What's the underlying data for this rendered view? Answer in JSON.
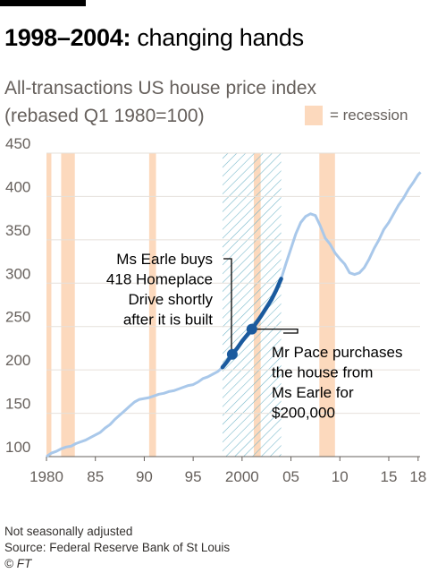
{
  "header": {
    "title_bold": "1998–2004:",
    "title_rest": "changing hands",
    "subtitle_line1": "All-transactions US house price index",
    "subtitle_line2": "(rebased Q1 1980=100)",
    "legend_label": "= recession"
  },
  "footer": {
    "note": "Not seasonally adjusted",
    "source": "Source: Federal Reserve Bank of St Louis",
    "credit": "© FT"
  },
  "colors": {
    "line": "#a9c8ea",
    "highlight": "#1a5a9e",
    "recession": "#fcd9bd",
    "hatch": "#6fb3c7",
    "grid": "#e6e1db",
    "tick_text": "#66605c"
  },
  "chart_data": {
    "type": "line",
    "x_range": [
      1980,
      2018.5
    ],
    "ylim": [
      100,
      450
    ],
    "yticks": [
      100,
      150,
      200,
      250,
      300,
      350,
      400,
      450
    ],
    "xticks": [
      {
        "x": 1980,
        "label": "1980"
      },
      {
        "x": 1985,
        "label": "85"
      },
      {
        "x": 1990,
        "label": "90"
      },
      {
        "x": 1995,
        "label": "95"
      },
      {
        "x": 2000,
        "label": "2000"
      },
      {
        "x": 2005,
        "label": "05"
      },
      {
        "x": 2010,
        "label": "10"
      },
      {
        "x": 2015,
        "label": "15"
      },
      {
        "x": 2018,
        "label": "18"
      }
    ],
    "grid": true,
    "legend": "top-right",
    "recessions": [
      [
        1980.0,
        1980.5
      ],
      [
        1981.5,
        1982.9
      ],
      [
        1990.5,
        1991.2
      ],
      [
        2001.2,
        2001.9
      ],
      [
        2007.9,
        2009.5
      ]
    ],
    "highlight_period": [
      1998.0,
      2004.0
    ],
    "series": [
      {
        "x": [
          1980.0,
          1980.5,
          1981.0,
          1981.5,
          1982.0,
          1982.5,
          1983.0,
          1983.5,
          1984.0,
          1984.5,
          1985.0,
          1985.5,
          1986.0,
          1986.5,
          1987.0,
          1987.5,
          1988.0,
          1988.5,
          1989.0,
          1989.5,
          1990.0,
          1990.5,
          1991.0,
          1991.5,
          1992.0,
          1992.5,
          1993.0,
          1993.5,
          1994.0,
          1994.5,
          1995.0,
          1995.5,
          1996.0,
          1996.5,
          1997.0,
          1997.5,
          1998.0,
          1998.5,
          1999.0,
          1999.5,
          2000.0,
          2000.5,
          2001.0,
          2001.5,
          2002.0,
          2002.5,
          2003.0,
          2003.5,
          2004.0,
          2004.5,
          2005.0,
          2005.5,
          2006.0,
          2006.5,
          2007.0,
          2007.5,
          2008.0,
          2008.5,
          2009.0,
          2009.5,
          2010.0,
          2010.5,
          2011.0,
          2011.5,
          2012.0,
          2012.5,
          2013.0,
          2013.5,
          2014.0,
          2014.5,
          2015.0,
          2015.5,
          2016.0,
          2016.5,
          2017.0,
          2017.5,
          2018.0,
          2018.25
        ],
        "values": [
          100,
          104,
          106,
          109,
          111,
          112,
          115,
          117,
          119,
          122,
          125,
          128,
          133,
          137,
          143,
          148,
          153,
          158,
          163,
          166,
          167,
          168,
          170,
          172,
          173,
          175,
          176,
          178,
          180,
          182,
          183,
          186,
          190,
          192,
          195,
          198,
          203,
          210,
          218,
          225,
          233,
          240,
          247,
          255,
          263,
          272,
          281,
          292,
          305,
          323,
          340,
          357,
          370,
          377,
          380,
          378,
          366,
          352,
          345,
          335,
          328,
          322,
          312,
          310,
          312,
          318,
          328,
          340,
          350,
          362,
          370,
          380,
          390,
          398,
          408,
          416,
          425,
          428
        ]
      }
    ],
    "highlight_series": {
      "x": [
        1998.0,
        1998.5,
        1999.0,
        1999.5,
        2000.0,
        2000.5,
        2001.0,
        2001.5,
        2002.0,
        2002.5,
        2003.0,
        2003.5,
        2004.0
      ],
      "values": [
        203,
        210,
        218,
        225,
        233,
        240,
        247,
        255,
        263,
        272,
        281,
        292,
        305
      ]
    },
    "events": [
      {
        "x": 1999.0,
        "y": 218,
        "label_lines": [
          "Ms Earle buys",
          "418 Homeplace",
          "Drive shortly",
          "after it is built"
        ]
      },
      {
        "x": 2001.0,
        "y": 247,
        "label_lines": [
          "Mr Pace purchases",
          "the house from",
          "Ms Earle for",
          "$200,000"
        ]
      }
    ]
  }
}
